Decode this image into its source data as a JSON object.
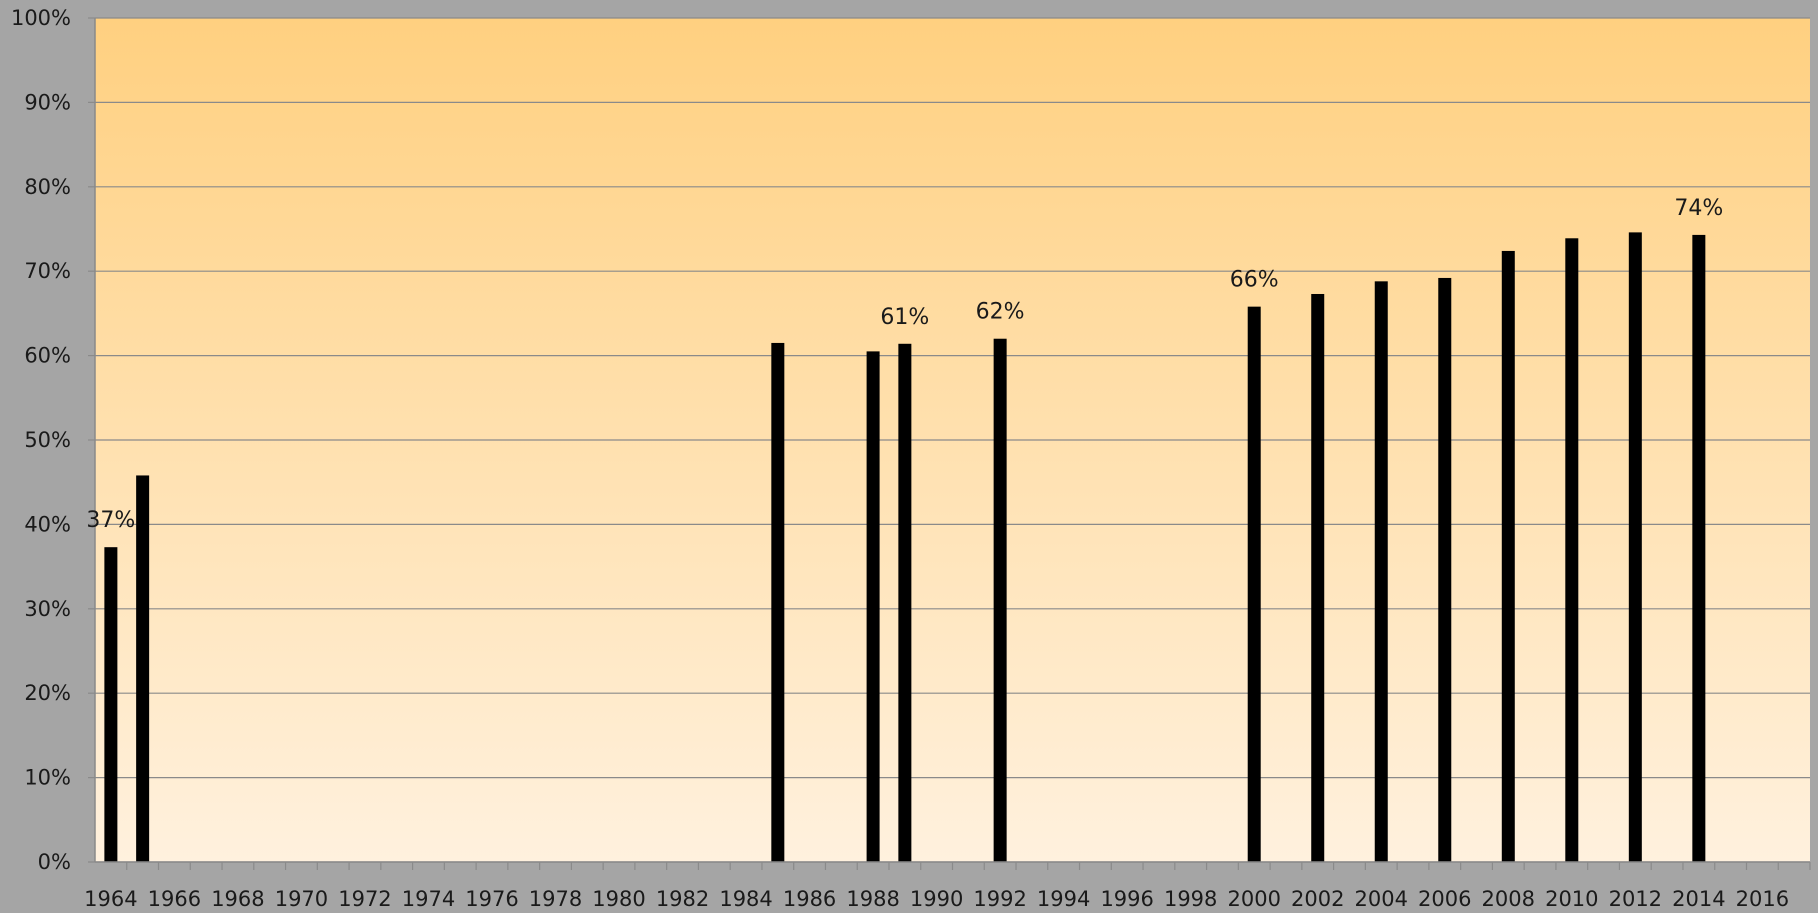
{
  "chart_data": {
    "type": "bar",
    "title": "",
    "xlabel": "",
    "ylabel": "",
    "x": [
      1964,
      1965,
      1985,
      1988,
      1989,
      1992,
      2000,
      2002,
      2004,
      2006,
      2008,
      2010,
      2012,
      2014
    ],
    "values": [
      37.3,
      45.8,
      61.5,
      60.5,
      61.4,
      62.0,
      65.8,
      67.3,
      68.8,
      69.2,
      72.4,
      73.9,
      74.6,
      74.3
    ],
    "xlim": [
      1963.5,
      2017.5
    ],
    "x_ticks": [
      "1964",
      "1966",
      "1968",
      "1970",
      "1972",
      "1974",
      "1976",
      "1978",
      "1980",
      "1982",
      "1984",
      "1986",
      "1988",
      "1990",
      "1992",
      "1994",
      "1996",
      "1998",
      "2000",
      "2002",
      "2004",
      "2006",
      "2008",
      "2010",
      "2012",
      "2014",
      "2016"
    ],
    "ylim": [
      0,
      100
    ],
    "y_ticks": [
      "0%",
      "10%",
      "20%",
      "30%",
      "40%",
      "50%",
      "60%",
      "70%",
      "80%",
      "90%",
      "100%"
    ],
    "grid": true,
    "legend": "none",
    "data_labels": [
      {
        "x": 1964,
        "text": "37%"
      },
      {
        "x": 1989,
        "text": "61%"
      },
      {
        "x": 1992,
        "text": "62%"
      },
      {
        "x": 2000,
        "text": "66%"
      },
      {
        "x": 2014,
        "text": "74%"
      }
    ],
    "colors": {
      "bar": "#000000",
      "background_outer": "#a5a5a5",
      "plot_top": "#ffd080",
      "plot_bottom": "#fff1de",
      "grid": "#8a8a8a"
    }
  }
}
